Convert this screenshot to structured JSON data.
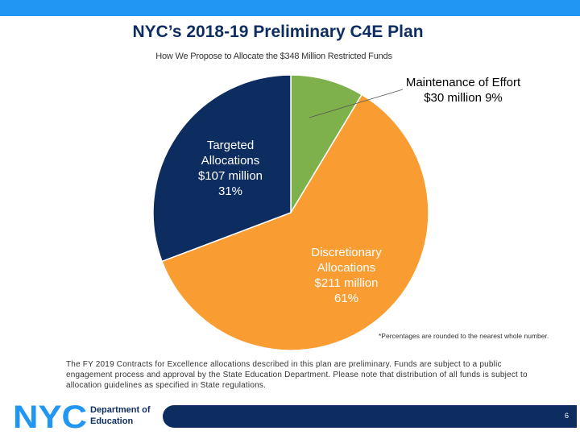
{
  "header": {
    "title": "NYC’s 2018-19 Preliminary C4E Plan",
    "subtitle": "How We Propose to Allocate the $348 Million Restricted Funds"
  },
  "chart_data": {
    "type": "pie",
    "title": "NYC’s 2018-19 Preliminary C4E Plan",
    "subtitle": "How We Propose to Allocate the $348 Million Restricted Funds",
    "slices": [
      {
        "name": "Maintenance of Effort",
        "label_lines": [
          "Maintenance of Effort",
          "$30 million  9%"
        ],
        "value_millions": 30,
        "percent": 9,
        "color": "#7eb04b"
      },
      {
        "name": "Discretionary Allocations",
        "label_lines": [
          "Discretionary",
          "Allocations",
          "$211 million",
          "61%"
        ],
        "value_millions": 211,
        "percent": 61,
        "color": "#f99d33"
      },
      {
        "name": "Targeted Allocations",
        "label_lines": [
          "Targeted",
          "Allocations",
          "$107 million",
          "31%"
        ],
        "value_millions": 107,
        "percent": 31,
        "color": "#0d2c5f"
      }
    ]
  },
  "footnote": "*Percentages are rounded to the nearest whole number.",
  "disclaimer": "The FY 2019 Contracts for Excellence allocations described in this plan are preliminary. Funds are subject to a public engagement process and approval by the State Education Department. Please note that distribution of all funds is subject to allocation guidelines as specified in State regulations.",
  "logo": {
    "mark": "NYC",
    "line1": "Department of",
    "line2": "Education",
    "color": "#2196f3",
    "text_color": "#0d2c5f"
  },
  "page_number": "6"
}
